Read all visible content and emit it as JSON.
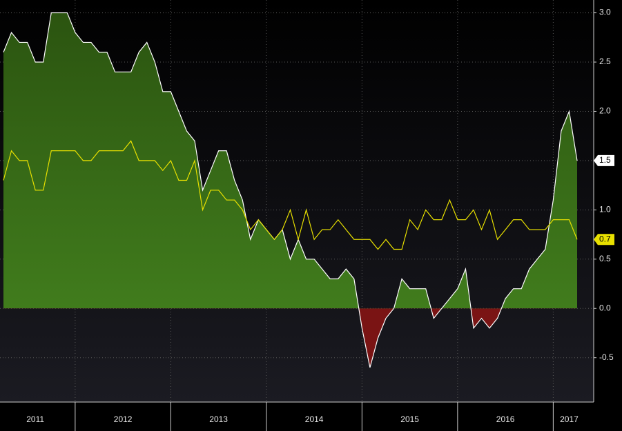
{
  "chart_data": {
    "type": "area-line",
    "categories": [
      null,
      null,
      null,
      null,
      "2011",
      null,
      null,
      null,
      null,
      null,
      null,
      null,
      null,
      null,
      null,
      "2012",
      null,
      null,
      null,
      null,
      null,
      null,
      null,
      null,
      null,
      null,
      null,
      "2013",
      null,
      null,
      null,
      null,
      null,
      null,
      null,
      null,
      null,
      null,
      null,
      "2014",
      null,
      null,
      null,
      null,
      null,
      null,
      null,
      null,
      null,
      null,
      null,
      "2015",
      null,
      null,
      null,
      null,
      null,
      null,
      null,
      null,
      null,
      null,
      null,
      "2016",
      null,
      null,
      null,
      null,
      null,
      null,
      null,
      "2017",
      null
    ],
    "series": [
      {
        "color": "#ffffff",
        "fill": "#3d7a1e",
        "negative_fill": "#7a1414",
        "values": [
          2.6,
          2.8,
          2.7,
          2.7,
          2.5,
          2.5,
          3.0,
          3.0,
          3.0,
          2.8,
          2.7,
          2.7,
          2.6,
          2.6,
          2.4,
          2.4,
          2.4,
          2.6,
          2.7,
          2.5,
          2.2,
          2.2,
          2.0,
          1.8,
          1.7,
          1.2,
          1.4,
          1.6,
          1.6,
          1.3,
          1.1,
          0.7,
          0.9,
          0.8,
          0.7,
          0.8,
          0.5,
          0.7,
          0.5,
          0.5,
          0.4,
          0.3,
          0.3,
          0.4,
          0.3,
          -0.2,
          -0.6,
          -0.3,
          -0.1,
          0.0,
          0.3,
          0.2,
          0.2,
          0.2,
          -0.1,
          0.0,
          0.1,
          0.2,
          0.4,
          -0.2,
          -0.1,
          -0.2,
          -0.1,
          0.1,
          0.2,
          0.2,
          0.4,
          0.5,
          0.6,
          1.1,
          1.8,
          2.0,
          1.5
        ]
      },
      {
        "color": "#e8e000",
        "values": [
          1.3,
          1.6,
          1.5,
          1.5,
          1.2,
          1.2,
          1.6,
          1.6,
          1.6,
          1.6,
          1.5,
          1.5,
          1.6,
          1.6,
          1.6,
          1.6,
          1.7,
          1.5,
          1.5,
          1.5,
          1.4,
          1.5,
          1.3,
          1.3,
          1.5,
          1.0,
          1.2,
          1.2,
          1.1,
          1.1,
          1.0,
          0.8,
          0.9,
          0.8,
          0.7,
          0.8,
          1.0,
          0.7,
          1.0,
          0.7,
          0.8,
          0.8,
          0.9,
          0.8,
          0.7,
          0.7,
          0.7,
          0.6,
          0.7,
          0.6,
          0.6,
          0.9,
          0.8,
          1.0,
          0.9,
          0.9,
          1.1,
          0.9,
          0.9,
          1.0,
          0.8,
          1.0,
          0.7,
          0.8,
          0.9,
          0.9,
          0.8,
          0.8,
          0.8,
          0.9,
          0.9,
          0.9,
          0.7
        ]
      }
    ],
    "ylim": [
      -0.95,
      3.13
    ],
    "yticks": [
      {
        "value": -0.5,
        "label": "-0.5"
      },
      {
        "value": 0,
        "label": "0.0"
      },
      {
        "value": 0.5,
        "label": "0.5"
      },
      {
        "value": 1,
        "label": "1.0"
      },
      {
        "value": 1.5,
        "label": "1.5"
      },
      {
        "value": 2,
        "label": "2.0"
      },
      {
        "value": 2.5,
        "label": "2.5"
      },
      {
        "value": 3,
        "label": "3.0"
      }
    ],
    "grid": true
  }
}
